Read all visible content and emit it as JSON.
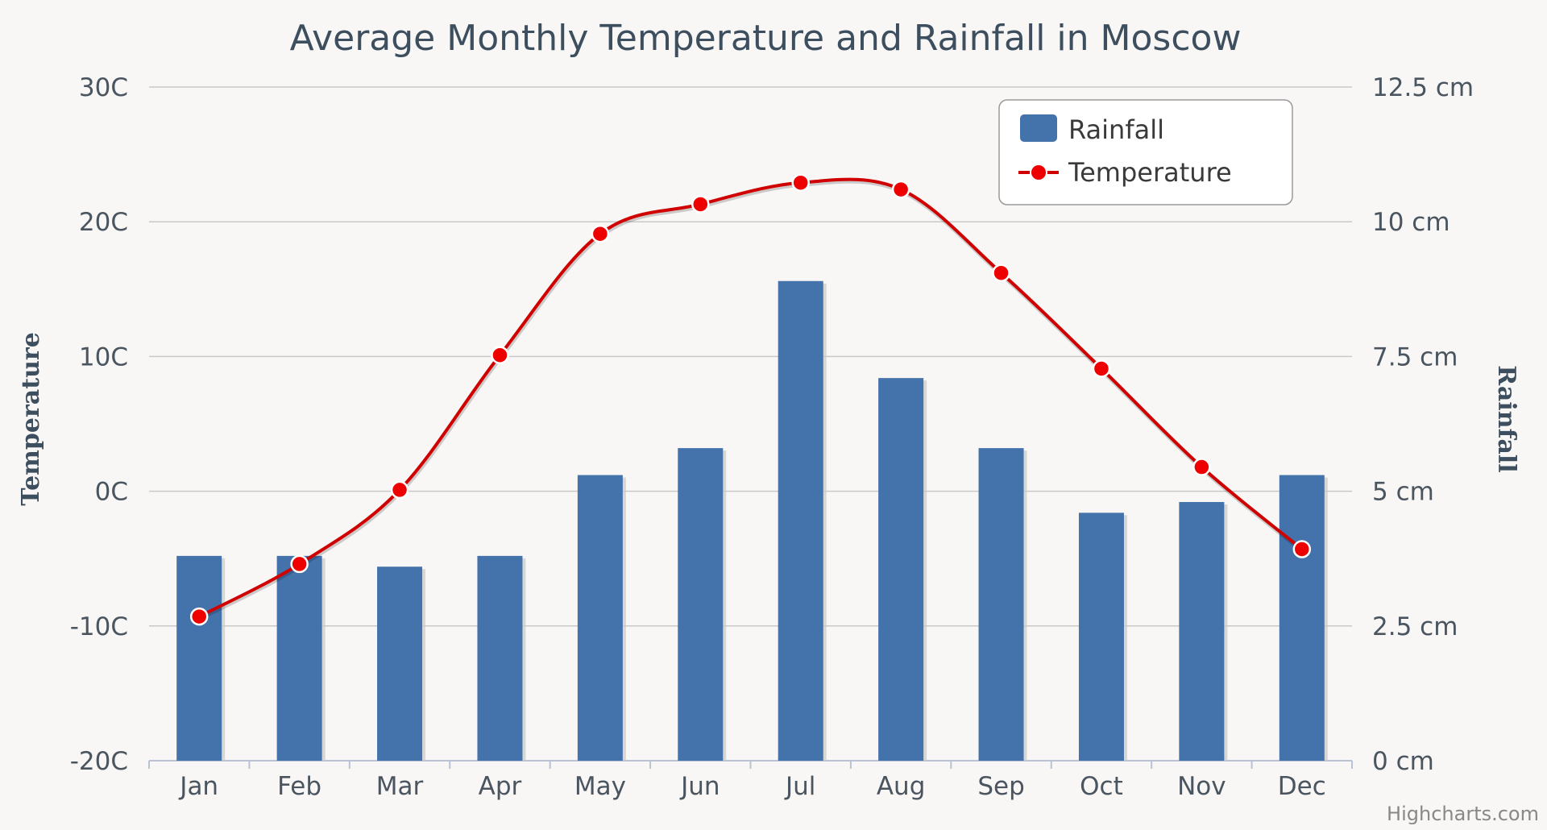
{
  "colors": {
    "bar": "#4472aa",
    "bar_shadow": "#c9c9c9",
    "line": "#d00000",
    "marker": "#ee0000",
    "grid": "#c8c8c8",
    "text": "#3d4f5e"
  },
  "credits": "Highcharts.com",
  "chart_data": {
    "type": "bar+line",
    "title": "Average Monthly Temperature and Rainfall in Moscow",
    "categories": [
      "Jan",
      "Feb",
      "Mar",
      "Apr",
      "May",
      "Jun",
      "Jul",
      "Aug",
      "Sep",
      "Oct",
      "Nov",
      "Dec"
    ],
    "y_left": {
      "title": "Temperature",
      "min": -20,
      "max": 30,
      "ticks": [
        -20,
        -10,
        0,
        10,
        20,
        30
      ],
      "tick_labels": [
        "-20C",
        "-10C",
        "0C",
        "10C",
        "20C",
        "30C"
      ]
    },
    "y_right": {
      "title": "Rainfall",
      "min": 0,
      "max": 12.5,
      "ticks": [
        0,
        2.5,
        5,
        7.5,
        10,
        12.5
      ],
      "tick_labels": [
        "0 cm",
        "2.5 cm",
        "5 cm",
        "7.5 cm",
        "10 cm",
        "12.5 cm"
      ]
    },
    "legend": {
      "position": "top-right",
      "items": [
        "Rainfall",
        "Temperature"
      ]
    },
    "series": [
      {
        "name": "Rainfall",
        "type": "bar",
        "axis": "right",
        "values": [
          3.8,
          3.8,
          3.6,
          3.8,
          5.3,
          5.8,
          8.9,
          7.1,
          5.8,
          4.6,
          4.8,
          5.3
        ]
      },
      {
        "name": "Temperature",
        "type": "line",
        "axis": "left",
        "values": [
          -9.3,
          -5.4,
          0.1,
          10.1,
          19.1,
          21.3,
          22.9,
          22.4,
          16.2,
          9.1,
          1.8,
          -4.3
        ]
      }
    ]
  }
}
